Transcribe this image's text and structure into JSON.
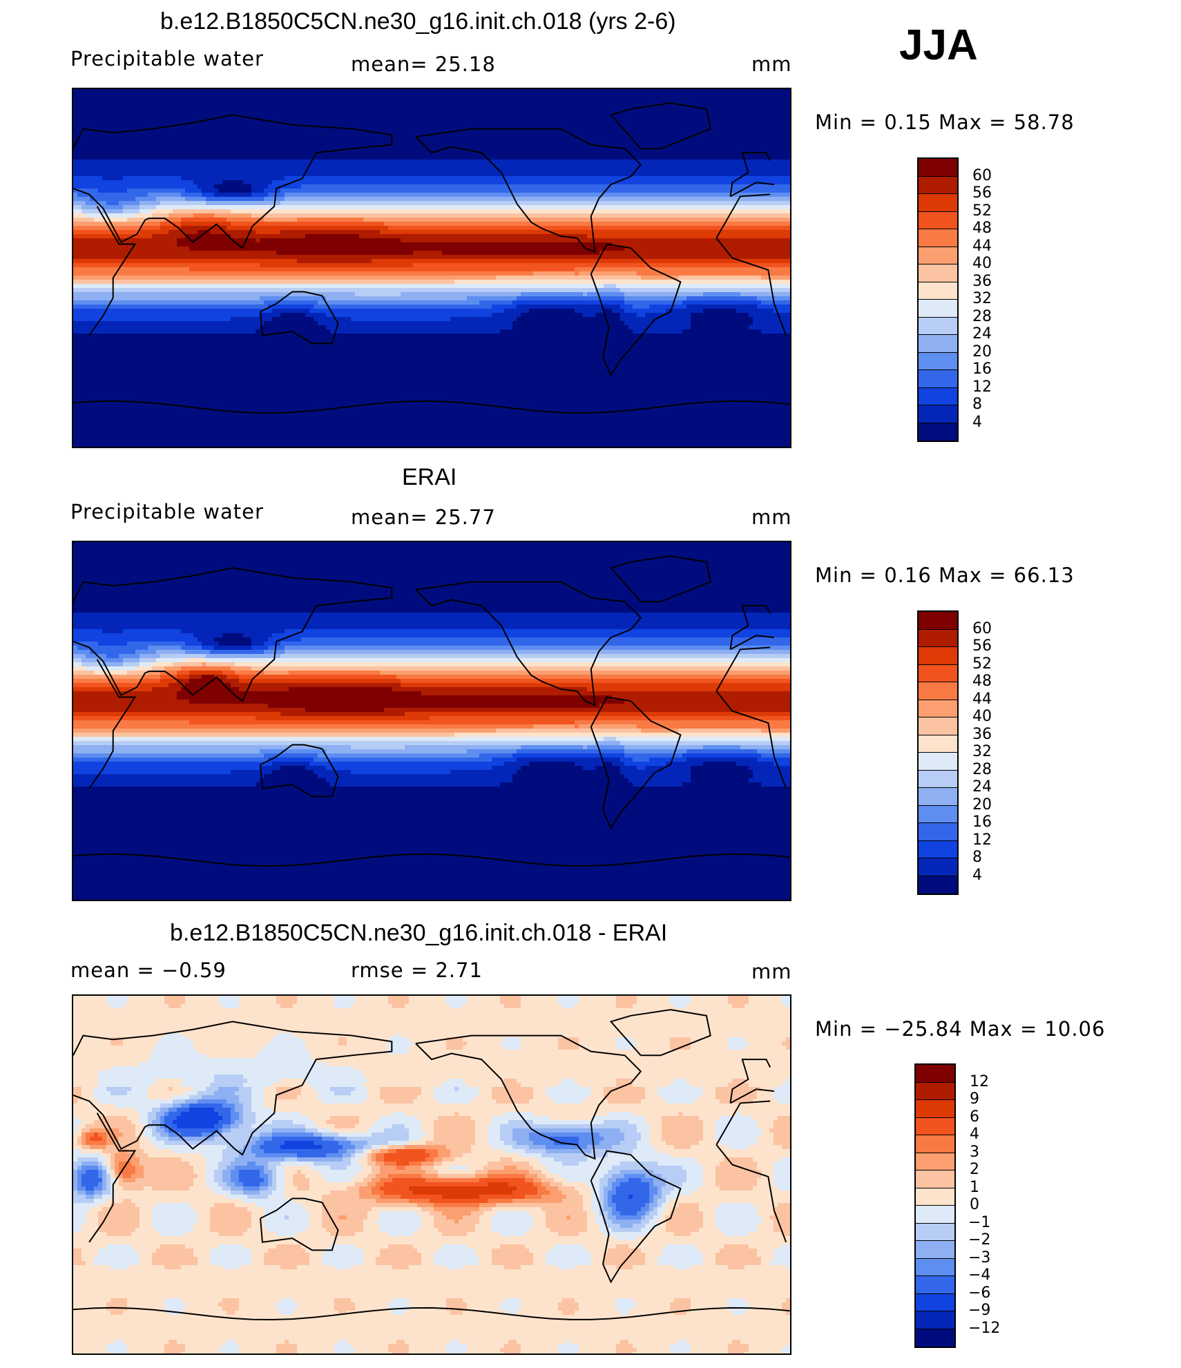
{
  "season": "JJA",
  "panels": [
    {
      "title": "b.e12.B1850C5CN.ne30_g16.init.ch.018 (yrs 2-6)",
      "left_label": "Precipitable  water",
      "mid_label": "mean=   25.18",
      "unit": "mm",
      "minmax": "Min  =     0.15  Max  =    58.78",
      "field": "model",
      "colorbar": {
        "labels": [
          "60",
          "56",
          "52",
          "48",
          "44",
          "40",
          "36",
          "32",
          "28",
          "24",
          "20",
          "16",
          "12",
          "8",
          "4"
        ],
        "colors": [
          "#7f0000",
          "#b01c00",
          "#dd3a06",
          "#f2541f",
          "#f97a44",
          "#fb9f70",
          "#fcc3a2",
          "#fde3cc",
          "#deeaf7",
          "#b7cdf5",
          "#8eb0f2",
          "#5e8ef0",
          "#3367ea",
          "#1043e0",
          "#0326b8",
          "#000c7e"
        ]
      }
    },
    {
      "title": "ERAI",
      "left_label": "Precipitable  water",
      "mid_label": "mean=   25.77",
      "unit": "mm",
      "minmax": "Min  =     0.16  Max  =    66.13",
      "field": "obs",
      "colorbar": {
        "labels": [
          "60",
          "56",
          "52",
          "48",
          "44",
          "40",
          "36",
          "32",
          "28",
          "24",
          "20",
          "16",
          "12",
          "8",
          "4"
        ],
        "colors": [
          "#7f0000",
          "#b01c00",
          "#dd3a06",
          "#f2541f",
          "#f97a44",
          "#fb9f70",
          "#fcc3a2",
          "#fde3cc",
          "#deeaf7",
          "#b7cdf5",
          "#8eb0f2",
          "#5e8ef0",
          "#3367ea",
          "#1043e0",
          "#0326b8",
          "#000c7e"
        ]
      }
    },
    {
      "title": "b.e12.B1850C5CN.ne30_g16.init.ch.018 - ERAI",
      "left_label": "mean  =    −0.59",
      "mid_label": "rmse  =     2.71",
      "unit": "mm",
      "minmax": "Min  =  −25.84  Max  =    10.06",
      "field": "diff",
      "colorbar": {
        "labels": [
          "12",
          "9",
          "6",
          "4",
          "3",
          "2",
          "1",
          "0",
          "−1",
          "−2",
          "−3",
          "−4",
          "−6",
          "−9",
          "−12"
        ],
        "colors": [
          "#7f0000",
          "#b01c00",
          "#dd3a06",
          "#f2541f",
          "#f97a44",
          "#fb9f70",
          "#fcc3a2",
          "#fde3cc",
          "#deeaf7",
          "#b7cdf5",
          "#8eb0f2",
          "#5e8ef0",
          "#3367ea",
          "#1043e0",
          "#0326b8",
          "#000c7e"
        ]
      }
    }
  ]
}
